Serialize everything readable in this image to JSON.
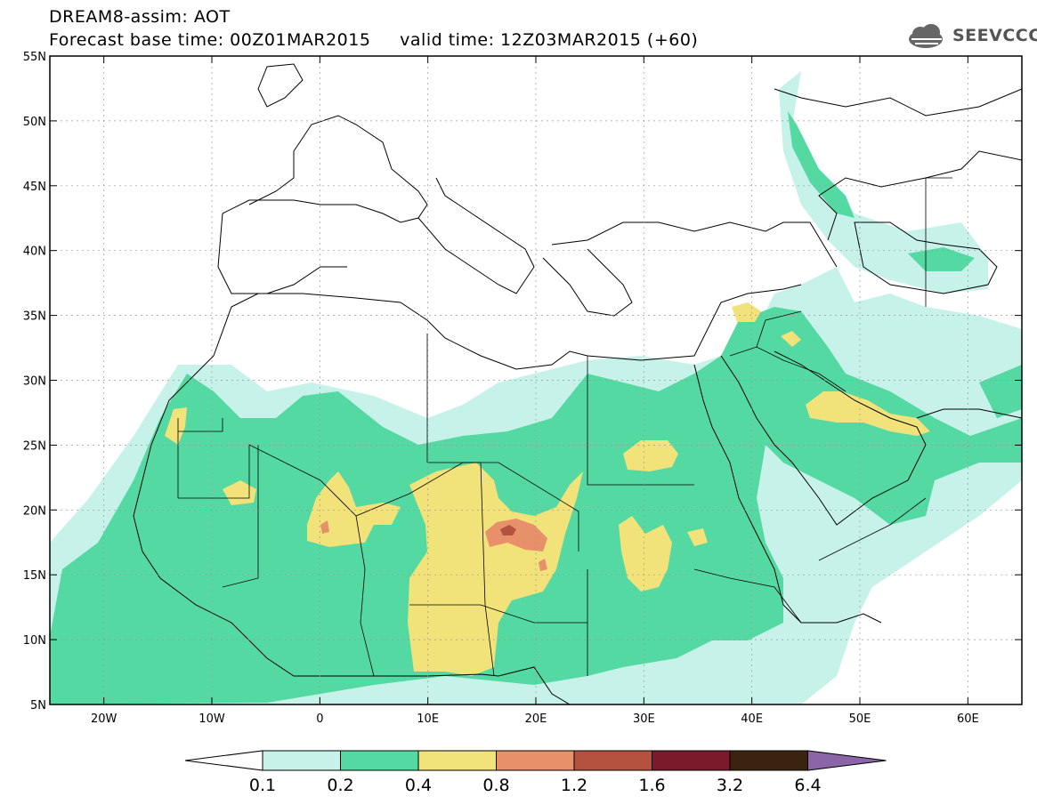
{
  "header": {
    "line1": "DREAM8-assim: AOT",
    "line2": "Forecast base time: 00Z01MAR2015     valid time: 12Z03MAR2015 (+60)",
    "logo_text": "SEEVCCC"
  },
  "map": {
    "lon_range": [
      -25,
      65
    ],
    "lat_range": [
      5,
      55
    ],
    "lat_ticks": [
      "5N",
      "10N",
      "15N",
      "20N",
      "25N",
      "30N",
      "35N",
      "40N",
      "45N",
      "50N",
      "55N"
    ],
    "lon_ticks": [
      "20W",
      "10W",
      "0",
      "10E",
      "20E",
      "30E",
      "40E",
      "50E",
      "60E"
    ],
    "variable": "AOT"
  },
  "colorbar": {
    "labels": [
      "0.1",
      "0.2",
      "0.4",
      "0.8",
      "1.2",
      "1.6",
      "3.2",
      "6.4"
    ],
    "colors": [
      "#c6f2ea",
      "#55d9a3",
      "#f2e27a",
      "#e8906a",
      "#b5523f",
      "#7a1a2a",
      "#3a2410",
      "#8c64a8"
    ]
  },
  "colors": {
    "c1": "#c6f2ea",
    "c2": "#55d9a3",
    "c3": "#f2e27a",
    "c4": "#e8906a",
    "c5": "#b5523f",
    "c6": "#7a1a2a"
  }
}
